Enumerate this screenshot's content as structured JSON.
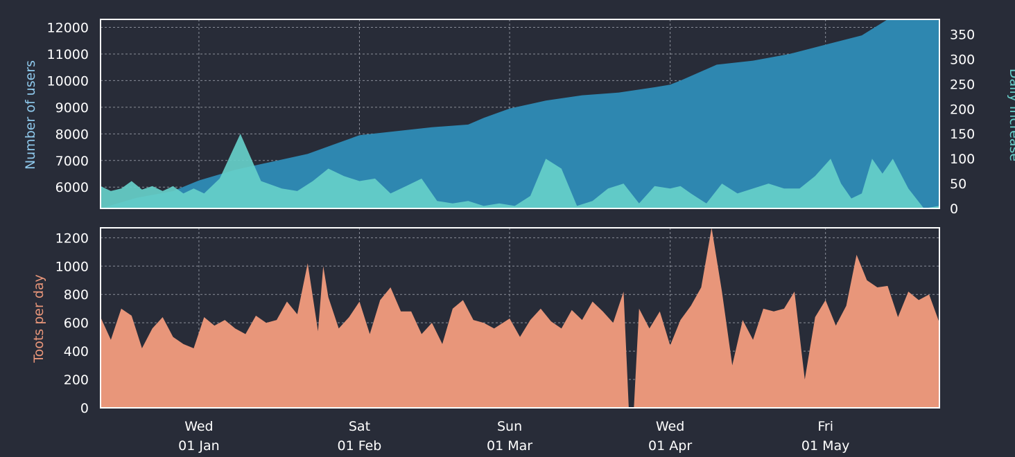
{
  "colors": {
    "background": "#282c38",
    "users": "#2e87b0",
    "daily_increase": "#66cfc9",
    "toots": "#e8967a",
    "grid": "#8a8e99",
    "frame": "#ffffff",
    "users_label": "#8fc9ec",
    "increase_label": "#66cfc9",
    "toots_label": "#e8967a"
  },
  "chart_data": [
    {
      "type": "area",
      "panel": "top",
      "x_start": "2019-12-13",
      "x_end": "2020-05-23",
      "x_ticks": [
        {
          "date": "2020-01-01",
          "weekday": "Wed",
          "day": "01 Jan"
        },
        {
          "date": "2020-02-01",
          "weekday": "Sat",
          "day": "01 Feb"
        },
        {
          "date": "2020-03-01",
          "weekday": "Sun",
          "day": "01 Mar"
        },
        {
          "date": "2020-04-01",
          "weekday": "Wed",
          "day": "01 Apr"
        },
        {
          "date": "2020-05-01",
          "weekday": "Fri",
          "day": "01 May"
        }
      ],
      "ylabel": "Number of users",
      "ylim": [
        5200,
        12300
      ],
      "yticks": [
        6000,
        7000,
        8000,
        9000,
        10000,
        11000,
        12000
      ],
      "y2label": "Daily increase",
      "y2lim": [
        0,
        380
      ],
      "y2ticks": [
        0,
        50,
        100,
        150,
        200,
        250,
        300,
        350
      ],
      "grid": true,
      "series": [
        {
          "axis": "left",
          "x": [
            "2019-12-13",
            "2019-12-20",
            "2019-12-27",
            "2020-01-01",
            "2020-01-08",
            "2020-01-15",
            "2020-01-22",
            "2020-01-27",
            "2020-02-01",
            "2020-02-08",
            "2020-02-15",
            "2020-02-22",
            "2020-02-25",
            "2020-03-01",
            "2020-03-08",
            "2020-03-15",
            "2020-03-22",
            "2020-03-29",
            "2020-04-01",
            "2020-04-03",
            "2020-04-10",
            "2020-04-17",
            "2020-04-24",
            "2020-05-01",
            "2020-05-08",
            "2020-05-13",
            "2020-05-23"
          ],
          "values": [
            5200,
            5600,
            5850,
            6250,
            6650,
            6950,
            7250,
            7600,
            7950,
            8100,
            8250,
            8350,
            8600,
            8950,
            9250,
            9450,
            9550,
            9750,
            9850,
            10000,
            10600,
            10750,
            11000,
            11350,
            11700,
            12300,
            12300
          ]
        },
        {
          "axis": "right",
          "x": [
            "2019-12-13",
            "2019-12-15",
            "2019-12-17",
            "2019-12-19",
            "2019-12-21",
            "2019-12-23",
            "2019-12-25",
            "2019-12-27",
            "2019-12-29",
            "2019-12-31",
            "2020-01-02",
            "2020-01-05",
            "2020-01-09",
            "2020-01-13",
            "2020-01-17",
            "2020-01-20",
            "2020-01-23",
            "2020-01-26",
            "2020-01-29",
            "2020-02-01",
            "2020-02-04",
            "2020-02-07",
            "2020-02-10",
            "2020-02-13",
            "2020-02-16",
            "2020-02-19",
            "2020-02-22",
            "2020-02-25",
            "2020-02-28",
            "2020-03-02",
            "2020-03-05",
            "2020-03-08",
            "2020-03-11",
            "2020-03-14",
            "2020-03-17",
            "2020-03-20",
            "2020-03-23",
            "2020-03-26",
            "2020-03-29",
            "2020-04-01",
            "2020-04-03",
            "2020-04-05",
            "2020-04-08",
            "2020-04-11",
            "2020-04-14",
            "2020-04-17",
            "2020-04-20",
            "2020-04-23",
            "2020-04-26",
            "2020-04-29",
            "2020-05-02",
            "2020-05-04",
            "2020-05-06",
            "2020-05-08",
            "2020-05-10",
            "2020-05-12",
            "2020-05-14",
            "2020-05-17",
            "2020-05-20",
            "2020-05-23"
          ],
          "values": [
            45,
            35,
            40,
            55,
            38,
            45,
            35,
            45,
            30,
            40,
            30,
            60,
            150,
            55,
            40,
            35,
            55,
            80,
            65,
            55,
            60,
            30,
            45,
            60,
            15,
            10,
            15,
            5,
            10,
            5,
            25,
            100,
            80,
            5,
            15,
            40,
            50,
            10,
            45,
            40,
            45,
            30,
            10,
            50,
            30,
            40,
            50,
            40,
            40,
            65,
            100,
            50,
            20,
            30,
            100,
            70,
            100,
            40,
            0,
            5
          ]
        }
      ]
    },
    {
      "type": "area",
      "panel": "bottom",
      "x_start": "2019-12-13",
      "x_end": "2020-05-23",
      "ylabel": "Toots per day",
      "ylim": [
        0,
        1270
      ],
      "yticks": [
        0,
        200,
        400,
        600,
        800,
        1000,
        1200
      ],
      "grid": true,
      "series": [
        {
          "x": [
            "2019-12-13",
            "2019-12-15",
            "2019-12-17",
            "2019-12-19",
            "2019-12-21",
            "2019-12-23",
            "2019-12-25",
            "2019-12-27",
            "2019-12-29",
            "2019-12-31",
            "2020-01-02",
            "2020-01-04",
            "2020-01-06",
            "2020-01-08",
            "2020-01-10",
            "2020-01-12",
            "2020-01-14",
            "2020-01-16",
            "2020-01-18",
            "2020-01-20",
            "2020-01-22",
            "2020-01-24",
            "2020-01-25",
            "2020-01-26",
            "2020-01-28",
            "2020-01-30",
            "2020-02-01",
            "2020-02-03",
            "2020-02-05",
            "2020-02-07",
            "2020-02-09",
            "2020-02-11",
            "2020-02-13",
            "2020-02-15",
            "2020-02-17",
            "2020-02-19",
            "2020-02-21",
            "2020-02-23",
            "2020-02-25",
            "2020-02-27",
            "2020-03-01",
            "2020-03-03",
            "2020-03-05",
            "2020-03-07",
            "2020-03-09",
            "2020-03-11",
            "2020-03-13",
            "2020-03-15",
            "2020-03-17",
            "2020-03-19",
            "2020-03-21",
            "2020-03-23",
            "2020-03-24",
            "2020-03-25",
            "2020-03-26",
            "2020-03-28",
            "2020-03-30",
            "2020-04-01",
            "2020-04-03",
            "2020-04-05",
            "2020-04-07",
            "2020-04-09",
            "2020-04-11",
            "2020-04-13",
            "2020-04-15",
            "2020-04-17",
            "2020-04-19",
            "2020-04-21",
            "2020-04-23",
            "2020-04-25",
            "2020-04-27",
            "2020-04-29",
            "2020-05-01",
            "2020-05-03",
            "2020-05-05",
            "2020-05-07",
            "2020-05-09",
            "2020-05-11",
            "2020-05-13",
            "2020-05-15",
            "2020-05-17",
            "2020-05-19",
            "2020-05-21",
            "2020-05-23"
          ],
          "values": [
            640,
            480,
            700,
            650,
            420,
            560,
            640,
            500,
            450,
            420,
            640,
            580,
            620,
            560,
            520,
            650,
            600,
            620,
            750,
            660,
            1020,
            540,
            1000,
            780,
            560,
            640,
            750,
            520,
            760,
            850,
            680,
            680,
            520,
            600,
            450,
            700,
            760,
            620,
            600,
            560,
            630,
            500,
            620,
            700,
            610,
            560,
            690,
            620,
            750,
            680,
            600,
            820,
            0,
            0,
            700,
            560,
            680,
            440,
            620,
            720,
            850,
            1270,
            820,
            300,
            620,
            480,
            700,
            680,
            700,
            820,
            200,
            640,
            760,
            580,
            720,
            1080,
            900,
            850,
            860,
            640,
            820,
            760,
            800,
            600
          ]
        }
      ]
    }
  ]
}
